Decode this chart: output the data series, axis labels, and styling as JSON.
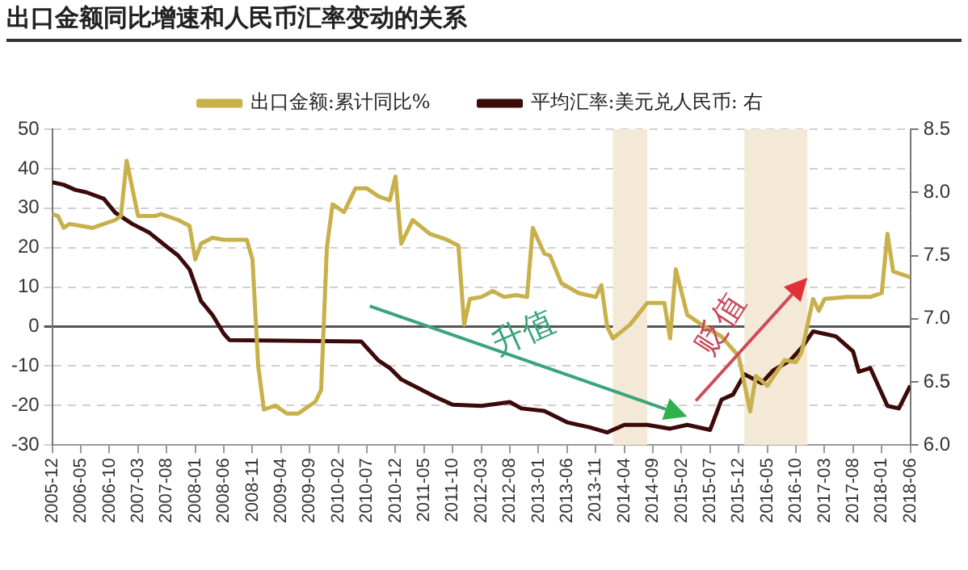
{
  "chart_data": {
    "type": "line",
    "title": "出口金额同比增速和人民币汇率变动的关系",
    "xlim": [
      "2005-12",
      "2018-06"
    ],
    "xticks": [
      "2005-12",
      "2006-05",
      "2006-10",
      "2007-03",
      "2007-08",
      "2008-01",
      "2008-06",
      "2008-11",
      "2009-04",
      "2009-09",
      "2010-02",
      "2010-07",
      "2010-12",
      "2011-05",
      "2011-10",
      "2012-03",
      "2012-08",
      "2013-01",
      "2013-06",
      "2013-11",
      "2014-04",
      "2014-09",
      "2015-02",
      "2015-07",
      "2015-12",
      "2016-05",
      "2016-10",
      "2017-03",
      "2017-08",
      "2018-01",
      "2018-06"
    ],
    "ylim": [
      -30,
      50
    ],
    "yticks": [
      -30,
      -20,
      -10,
      0,
      10,
      20,
      30,
      40,
      50
    ],
    "y2lim": [
      6,
      8.5
    ],
    "y2ticks": [
      {
        "value": 6,
        "label": "6.0"
      },
      {
        "value": 6.5,
        "label": "6.5"
      },
      {
        "value": 7,
        "label": "7.0"
      },
      {
        "value": 7.5,
        "label": "7.5"
      },
      {
        "value": 8,
        "label": "8.0"
      },
      {
        "value": 8.5,
        "label": "8.5"
      }
    ],
    "grid": "y",
    "legend": "top",
    "marker": "none",
    "line_style": "solid",
    "series": [
      {
        "name": "出口金额:累计同比%",
        "color": "#c8b04a",
        "x": [
          "2005-12",
          "2006-01",
          "2006-02",
          "2006-03",
          "2006-05",
          "2006-07",
          "2006-09",
          "2006-11",
          "2006-12",
          "2007-01",
          "2007-03",
          "2007-06",
          "2007-07",
          "2007-10",
          "2007-12",
          "2008-01",
          "2008-02",
          "2008-04",
          "2008-06",
          "2008-10",
          "2008-11",
          "2008-12",
          "2009-01",
          "2009-03",
          "2009-05",
          "2009-07",
          "2009-10",
          "2009-11",
          "2009-12",
          "2010-01",
          "2010-03",
          "2010-05",
          "2010-07",
          "2010-09",
          "2010-11",
          "2010-12",
          "2011-01",
          "2011-03",
          "2011-06",
          "2011-09",
          "2011-11",
          "2011-12",
          "2012-01",
          "2012-03",
          "2012-05",
          "2012-07",
          "2012-09",
          "2012-11",
          "2012-12",
          "2013-02",
          "2013-03",
          "2013-05",
          "2013-08",
          "2013-11",
          "2013-12",
          "2014-01",
          "2014-02",
          "2014-05",
          "2014-08",
          "2014-11",
          "2014-12",
          "2015-01",
          "2015-03",
          "2015-06",
          "2015-09",
          "2015-12",
          "2016-02",
          "2016-03",
          "2016-05",
          "2016-08",
          "2016-10",
          "2016-11",
          "2017-01",
          "2017-02",
          "2017-03",
          "2017-07",
          "2017-11",
          "2018-01",
          "2018-02",
          "2018-03",
          "2018-06"
        ],
        "values": [
          28.5,
          28,
          25,
          26,
          25.5,
          25,
          26,
          27,
          28,
          42,
          28,
          28,
          28.5,
          27,
          25.5,
          17,
          21,
          22.5,
          22,
          22,
          17,
          -10,
          -21,
          -20,
          -22,
          -22,
          -19,
          -16,
          20,
          31,
          29,
          35,
          35,
          33,
          32,
          38,
          21,
          27,
          23.5,
          22,
          20.5,
          0.5,
          7,
          7.5,
          9,
          7.5,
          8,
          7.5,
          25,
          18.5,
          18,
          11,
          8.5,
          7.5,
          10.5,
          0,
          -3,
          0.5,
          6,
          6,
          -3,
          14.5,
          3,
          0,
          -2.5,
          -7.5,
          -21.5,
          -12.5,
          -15,
          -8.5,
          -9,
          -6.5,
          7,
          4,
          7,
          7.5,
          7.5,
          8.5,
          23.5,
          14,
          12.5
        ]
      },
      {
        "name": "平均汇率:美元兑人民币: 右",
        "color": "#3d0a0a",
        "axis": "y2",
        "x": [
          "2005-12",
          "2006-02",
          "2006-04",
          "2006-06",
          "2006-09",
          "2006-11",
          "2007-02",
          "2007-05",
          "2007-08",
          "2007-10",
          "2007-12",
          "2008-02",
          "2008-04",
          "2008-06",
          "2008-07",
          "2010-06",
          "2010-07",
          "2010-09",
          "2010-11",
          "2011-01",
          "2011-04",
          "2011-07",
          "2011-10",
          "2012-03",
          "2012-08",
          "2012-10",
          "2013-02",
          "2013-06",
          "2013-10",
          "2014-01",
          "2014-04",
          "2014-08",
          "2014-12",
          "2015-03",
          "2015-07",
          "2015-09",
          "2015-11",
          "2016-01",
          "2016-04",
          "2016-06",
          "2016-09",
          "2016-11",
          "2017-01",
          "2017-03",
          "2017-05",
          "2017-08",
          "2017-09",
          "2017-11",
          "2018-02",
          "2018-04",
          "2018-06"
        ],
        "values": [
          8.08,
          8.06,
          8.02,
          8.0,
          7.95,
          7.84,
          7.75,
          7.68,
          7.57,
          7.5,
          7.39,
          7.14,
          7.03,
          6.88,
          6.83,
          6.82,
          6.77,
          6.67,
          6.61,
          6.52,
          6.45,
          6.38,
          6.32,
          6.31,
          6.34,
          6.29,
          6.27,
          6.18,
          6.14,
          6.1,
          6.16,
          6.16,
          6.13,
          6.16,
          6.12,
          6.36,
          6.4,
          6.56,
          6.49,
          6.59,
          6.67,
          6.77,
          6.9,
          6.88,
          6.86,
          6.74,
          6.58,
          6.61,
          6.31,
          6.29,
          6.47
        ]
      }
    ],
    "bands": [
      {
        "axis": "x",
        "from": "2014-02",
        "to": "2014-08",
        "color": "#f3e9d6"
      },
      {
        "axis": "x",
        "from": "2016-01",
        "to": "2016-12",
        "color": "#f3e9d6"
      }
    ],
    "annotations": [
      "升值",
      "贬值"
    ]
  }
}
